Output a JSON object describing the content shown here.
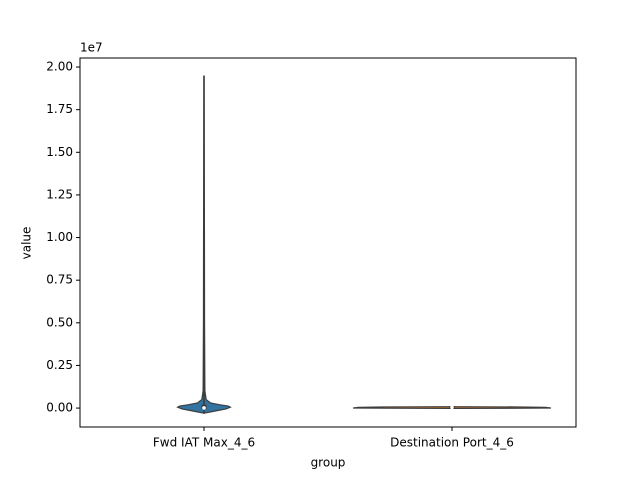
{
  "chart_data": {
    "type": "violin",
    "x_label": "group",
    "y_label": "value",
    "y_offset_label": "1e7",
    "categories": [
      "Fwd IAT Max_4_6",
      "Destination Port_4_6"
    ],
    "series": [
      {
        "name": "Fwd IAT Max_4_6",
        "color": "#3274a1",
        "density_y": [
          -0.03,
          -0.015,
          -0.005,
          0.005,
          0.012,
          0.02,
          0.03,
          0.05,
          0.1,
          0.5,
          1.0,
          1.95
        ],
        "density_width": [
          0.0,
          0.12,
          0.2,
          0.24,
          0.22,
          0.14,
          0.06,
          0.02,
          0.008,
          0.005,
          0.004,
          0.0
        ],
        "min": -0.03,
        "q1": -0.005,
        "median": 0.001,
        "q3": 0.02,
        "max": 1.95
      },
      {
        "name": "Destination Port_4_6",
        "color": "#e1812c",
        "density_y": [
          -0.002,
          0.0,
          0.002,
          0.004,
          0.0066,
          0.008
        ],
        "density_width": [
          0.0,
          0.9,
          0.88,
          0.85,
          0.6,
          0.0
        ],
        "min": 0.0,
        "q1": 0.0004,
        "median": 0.0044,
        "q3": 0.005,
        "max": 0.0066
      }
    ],
    "ylim": [
      -0.111,
      2.053
    ],
    "yticks": [
      {
        "value": 0,
        "label": "0.00"
      },
      {
        "value": 0.25,
        "label": "0.25"
      },
      {
        "value": 0.5,
        "label": "0.50"
      },
      {
        "value": 0.75,
        "label": "0.75"
      },
      {
        "value": 1,
        "label": "1.00"
      },
      {
        "value": 1.25,
        "label": "1.25"
      },
      {
        "value": 1.5,
        "label": "1.50"
      },
      {
        "value": 1.75,
        "label": "1.75"
      },
      {
        "value": 2,
        "label": "2.00"
      }
    ],
    "grid": false
  }
}
